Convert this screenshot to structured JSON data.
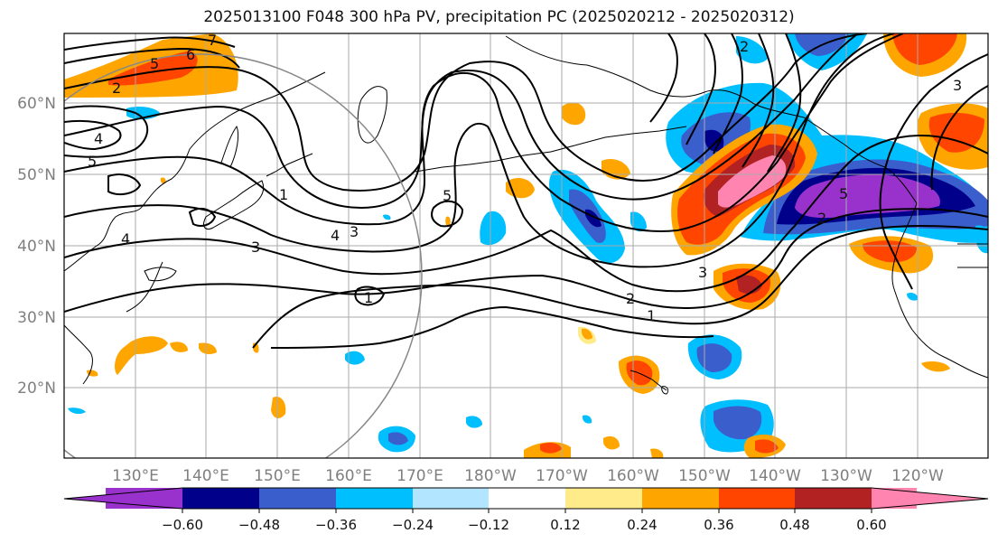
{
  "title": "2025013100 F048 300 hPa PV, precipitation PC (2025020212 - 2025020312)",
  "colors": {
    "neg_060": "#9932cc",
    "neg_048": "#00008b",
    "neg_036": "#3a5fcd",
    "neg_024": "#00bfff",
    "neg_012": "#b2e5ff",
    "neutral": "#ffffff",
    "pos_012": "#ffeb8a",
    "pos_024": "#ffa500",
    "pos_036": "#ff4500",
    "pos_048": "#b22222",
    "pos_060": "#ff85b0",
    "contour": "#000000",
    "grid": "#aaaaaa",
    "circle": "#888888"
  },
  "map": {
    "lat_labels": [
      "20°N",
      "30°N",
      "40°N",
      "50°N",
      "60°N"
    ],
    "lon_labels": [
      "130°E",
      "140°E",
      "150°E",
      "160°E",
      "170°E",
      "180°W",
      "170°W",
      "160°W",
      "150°W",
      "140°W",
      "130°W",
      "120°W"
    ],
    "extent": {
      "lon_min": 120,
      "lon_max": 250,
      "lat_min": 10,
      "lat_max": 70
    },
    "pv_contour_labels": [
      "1",
      "1",
      "1",
      "2",
      "2",
      "2",
      "2",
      "3",
      "3",
      "3",
      "3",
      "4",
      "4",
      "4",
      "5",
      "5",
      "5",
      "5",
      "6",
      "7"
    ]
  },
  "colorbar": {
    "ticks": [
      "−0.60",
      "−0.48",
      "−0.36",
      "−0.24",
      "−0.12",
      "0.12",
      "0.24",
      "0.36",
      "0.48",
      "0.60"
    ],
    "extend": "both"
  }
}
